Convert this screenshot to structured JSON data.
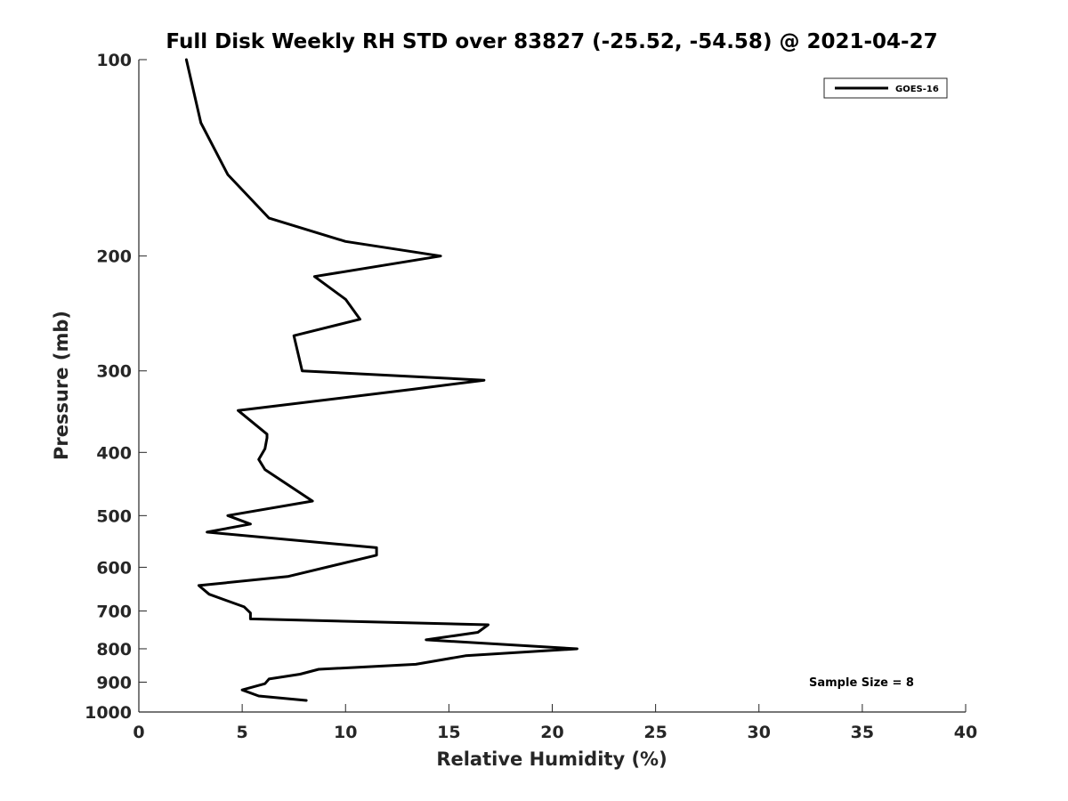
{
  "chart_data": {
    "type": "line",
    "title": "Full Disk Weekly RH STD over 83827 (-25.52, -54.58) @ 2021-04-27",
    "xlabel": "Relative Humidity (%)",
    "ylabel": "Pressure (mb)",
    "xlim": [
      0,
      40
    ],
    "ylim": [
      100,
      1000
    ],
    "y_scale": "log",
    "y_reversed": true,
    "x_ticks": [
      0,
      5,
      10,
      15,
      20,
      25,
      30,
      35,
      40
    ],
    "y_ticks": [
      100,
      200,
      300,
      400,
      500,
      600,
      700,
      800,
      900,
      1000
    ],
    "grid": false,
    "legend_position": "top-right",
    "series": [
      {
        "name": "GOES-16",
        "color": "#000000",
        "points": [
          [
            2.3,
            100
          ],
          [
            3.0,
            125
          ],
          [
            4.3,
            150
          ],
          [
            6.3,
            175
          ],
          [
            10.0,
            190
          ],
          [
            14.6,
            200
          ],
          [
            8.5,
            215
          ],
          [
            10.0,
            233
          ],
          [
            10.7,
            250
          ],
          [
            7.5,
            265
          ],
          [
            7.9,
            300
          ],
          [
            16.7,
            310
          ],
          [
            13.3,
            320
          ],
          [
            4.8,
            345
          ],
          [
            6.2,
            375
          ],
          [
            6.2,
            380
          ],
          [
            6.1,
            395
          ],
          [
            5.8,
            410
          ],
          [
            6.1,
            425
          ],
          [
            8.4,
            475
          ],
          [
            4.3,
            500
          ],
          [
            5.4,
            515
          ],
          [
            3.3,
            530
          ],
          [
            11.5,
            560
          ],
          [
            11.5,
            575
          ],
          [
            7.2,
            620
          ],
          [
            2.9,
            640
          ],
          [
            3.4,
            660
          ],
          [
            5.1,
            690
          ],
          [
            5.4,
            705
          ],
          [
            5.4,
            720
          ],
          [
            16.9,
            735
          ],
          [
            16.4,
            755
          ],
          [
            13.9,
            775
          ],
          [
            21.2,
            800
          ],
          [
            15.8,
            820
          ],
          [
            13.4,
            845
          ],
          [
            8.7,
            860
          ],
          [
            7.8,
            875
          ],
          [
            6.3,
            890
          ],
          [
            6.1,
            905
          ],
          [
            5.0,
            925
          ],
          [
            5.8,
            945
          ],
          [
            8.1,
            960
          ]
        ]
      }
    ],
    "annotation": "Sample Size = 8"
  }
}
